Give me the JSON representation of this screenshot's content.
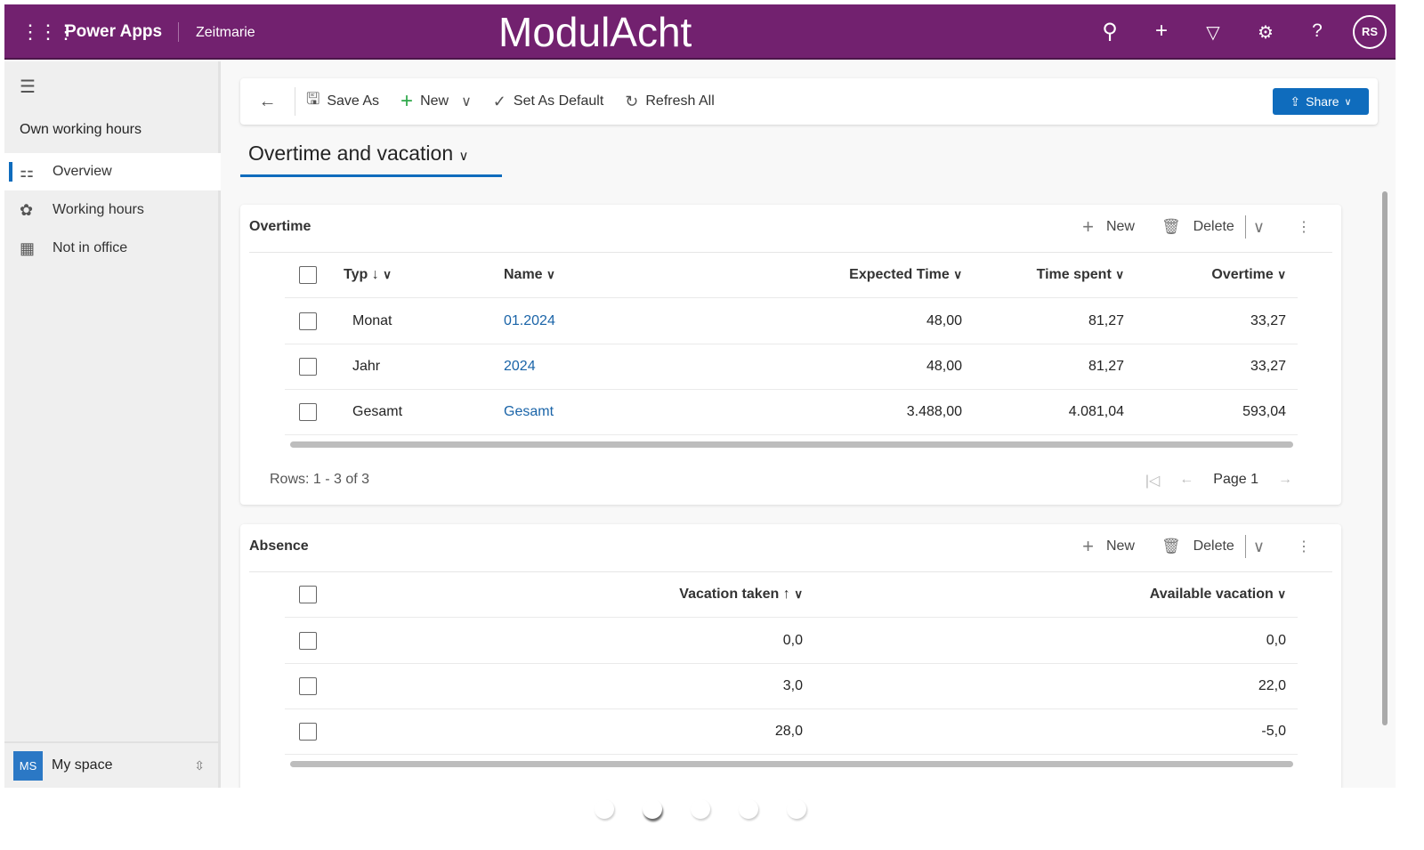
{
  "topbar": {
    "brand": "Power Apps",
    "app": "Zeitmarie",
    "center_title": "ModulAcht",
    "avatar": "RS",
    "icons": [
      "search-icon",
      "plus-icon",
      "filter-icon",
      "gear-icon",
      "help-icon"
    ],
    "color": "#72216f"
  },
  "sidebar": {
    "group": "Own working hours",
    "items": [
      {
        "label": "Overview",
        "icon": "dashboard-icon",
        "active": true
      },
      {
        "label": "Working hours",
        "icon": "puzzle-icon"
      },
      {
        "label": "Not in office",
        "icon": "calendar-icon"
      }
    ],
    "space": {
      "initials": "MS",
      "label": "My space"
    }
  },
  "toolbar": {
    "save_as": "Save As",
    "new": "New",
    "set_default": "Set As Default",
    "refresh": "Refresh All",
    "share": "Share"
  },
  "view": {
    "title": "Overtime and vacation"
  },
  "overtime": {
    "title": "Overtime",
    "new": "New",
    "delete": "Delete",
    "columns": {
      "typ": "Typ ↓",
      "name": "Name",
      "expected": "Expected Time",
      "spent": "Time spent",
      "overtime": "Overtime"
    },
    "rows": [
      {
        "typ": "Monat",
        "name": "01.2024",
        "expected": "48,00",
        "spent": "81,27",
        "overtime": "33,27"
      },
      {
        "typ": "Jahr",
        "name": "2024",
        "expected": "48,00",
        "spent": "81,27",
        "overtime": "33,27"
      },
      {
        "typ": "Gesamt",
        "name": "Gesamt",
        "expected": "3.488,00",
        "spent": "4.081,04",
        "overtime": "593,04"
      }
    ],
    "rows_info": "Rows: 1 - 3 of 3",
    "page": "Page 1"
  },
  "absence": {
    "title": "Absence",
    "new": "New",
    "delete": "Delete",
    "columns": {
      "taken": "Vacation taken ↑",
      "available": "Available vacation"
    },
    "rows": [
      {
        "taken": "0,0",
        "available": "0,0"
      },
      {
        "taken": "3,0",
        "available": "22,0"
      },
      {
        "taken": "28,0",
        "available": "-5,0"
      }
    ]
  },
  "carousel": {
    "count": 5,
    "active": 2
  }
}
